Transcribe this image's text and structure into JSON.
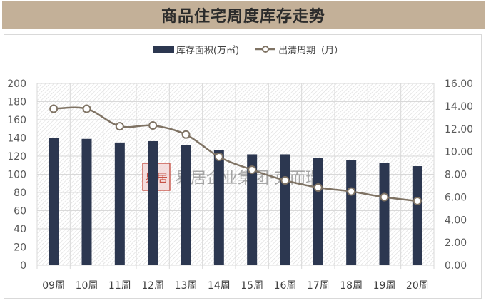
{
  "title": "商品住宅周度库存走势",
  "legend": {
    "bar_label": "库存面积(万㎡)",
    "line_label": "出清周期（月）"
  },
  "watermark": {
    "seal_text": "易居",
    "text": "易居企业集团·克而瑞"
  },
  "colors": {
    "title_bg": "#c3b098",
    "bar": "#2c3750",
    "line": "#7f7364",
    "marker_fill": "#ffffff",
    "grid": "#d9d9d9",
    "seal": "#c0392b"
  },
  "chart_data": {
    "type": "bar+line",
    "title": "商品住宅周度库存走势",
    "categories": [
      "09周",
      "10周",
      "11周",
      "12周",
      "13周",
      "14周",
      "15周",
      "16周",
      "17周",
      "18周",
      "19周",
      "20周"
    ],
    "series": [
      {
        "name": "库存面积(万㎡)",
        "type": "bar",
        "axis": "left",
        "values": [
          140,
          139,
          135,
          136.5,
          132.5,
          127,
          122,
          122,
          118,
          115.5,
          112.5,
          109
        ]
      },
      {
        "name": "出清周期（月）",
        "type": "line",
        "axis": "right",
        "values": [
          13.77,
          13.77,
          12.23,
          12.3,
          11.5,
          9.54,
          8.4,
          7.47,
          6.84,
          6.49,
          5.99,
          5.65
        ]
      }
    ],
    "left_axis": {
      "min": 0,
      "max": 200,
      "step": 20,
      "ticks": [
        "0",
        "20",
        "40",
        "60",
        "80",
        "100",
        "120",
        "140",
        "160",
        "180",
        "200"
      ]
    },
    "right_axis": {
      "min": 0,
      "max": 16,
      "step": 2,
      "ticks": [
        "0.00",
        "2.00",
        "4.00",
        "6.00",
        "8.00",
        "10.00",
        "12.00",
        "14.00",
        "16.00"
      ]
    },
    "xlabel": "",
    "ylabel": "",
    "y2label": "",
    "grid": true,
    "legend_position": "top"
  }
}
